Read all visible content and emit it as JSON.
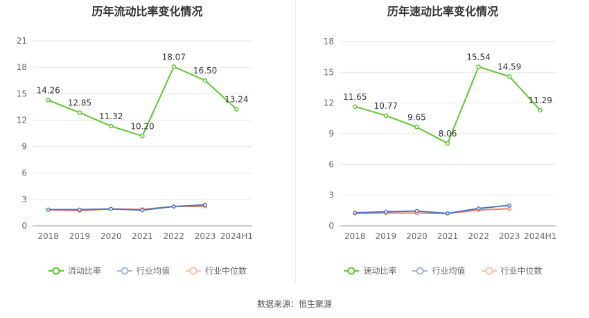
{
  "chart_data": [
    {
      "type": "line",
      "title": "历年流动比率变化情况",
      "categories": [
        "2018",
        "2019",
        "2020",
        "2021",
        "2022",
        "2023",
        "2024H1"
      ],
      "ylim": [
        0,
        21
      ],
      "yticks": [
        0,
        3,
        6,
        9,
        12,
        15,
        18,
        21
      ],
      "grid": true,
      "legend_position": "bottom",
      "series": [
        {
          "name": "流动比率",
          "color": "#5cc72e",
          "values": [
            14.26,
            12.85,
            11.32,
            10.2,
            18.07,
            16.5,
            13.24
          ],
          "labels": [
            "14.26",
            "12.85",
            "11.32",
            "10.20",
            "18.07",
            "16.50",
            "13.24"
          ]
        },
        {
          "name": "行业均值",
          "color": "#4f72c4",
          "values": [
            1.85,
            1.85,
            1.92,
            1.78,
            2.2,
            2.38,
            null
          ]
        },
        {
          "name": "行业中位数",
          "color": "#f08262",
          "values": [
            1.83,
            1.72,
            1.92,
            1.88,
            2.2,
            2.22,
            null
          ]
        }
      ]
    },
    {
      "type": "line",
      "title": "历年速动比率变化情况",
      "categories": [
        "2018",
        "2019",
        "2020",
        "2021",
        "2022",
        "2023",
        "2024H1"
      ],
      "ylim": [
        0,
        18
      ],
      "yticks": [
        0,
        3,
        6,
        9,
        12,
        15,
        18
      ],
      "grid": true,
      "legend_position": "bottom",
      "series": [
        {
          "name": "速动比率",
          "color": "#5cc72e",
          "values": [
            11.65,
            10.77,
            9.65,
            8.06,
            15.54,
            14.59,
            11.29
          ],
          "labels": [
            "11.65",
            "10.77",
            "9.65",
            "8.06",
            "15.54",
            "14.59",
            "11.29"
          ]
        },
        {
          "name": "行业均值",
          "color": "#4f72c4",
          "values": [
            1.28,
            1.38,
            1.45,
            1.22,
            1.7,
            2.0,
            null
          ]
        },
        {
          "name": "行业中位数",
          "color": "#f08262",
          "values": [
            1.22,
            1.25,
            1.25,
            1.2,
            1.55,
            1.68,
            null
          ]
        }
      ]
    }
  ],
  "legend_icons": [
    {
      "color": "#5cc72e",
      "icon": "circle-line-icon"
    },
    {
      "color": "#9db5e6",
      "icon": "circle-line-icon"
    },
    {
      "color": "#f5c0ae",
      "icon": "circle-line-icon"
    }
  ],
  "footer": {
    "source": "数据来源：恒生聚源"
  }
}
